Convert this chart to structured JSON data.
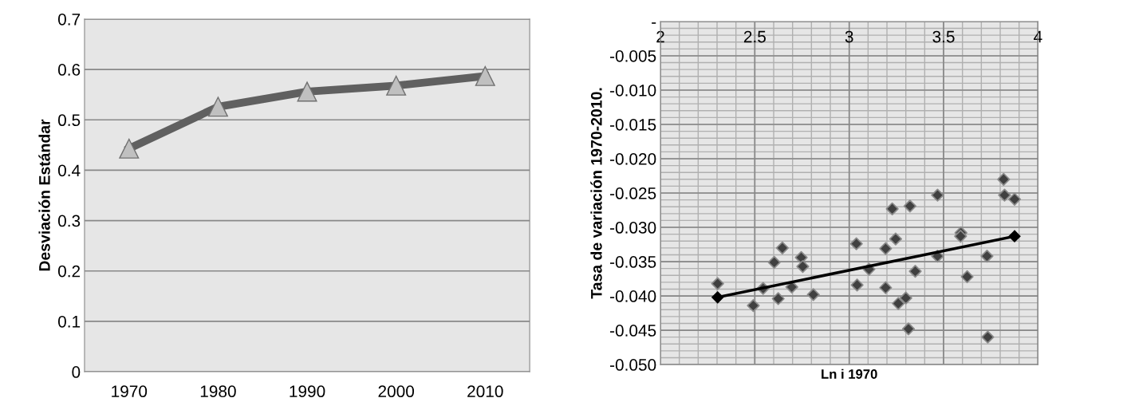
{
  "chart_data": [
    {
      "type": "line",
      "categories": [
        "1970",
        "1980",
        "1990",
        "2000",
        "2010"
      ],
      "ylabel": "Desviación Estándar",
      "ylim": [
        0,
        0.7
      ],
      "yticks": [
        0,
        0.1,
        0.2,
        0.3,
        0.4,
        0.5,
        0.6,
        0.7
      ],
      "grid": "y",
      "marker": "triangle",
      "series": [
        {
          "color": "#606060",
          "values": [
            0.443,
            0.526,
            0.556,
            0.568,
            0.587
          ]
        }
      ]
    },
    {
      "type": "scatter",
      "xlabel": "Ln i 1970",
      "ylabel": "Tasa de variación 1970-2010.",
      "xlim": [
        2,
        4
      ],
      "xticks": [
        2,
        2.5,
        3,
        3.5,
        4
      ],
      "ylim": [
        -0.05,
        0
      ],
      "yticks": [
        {
          "value": 0,
          "label": "-"
        },
        {
          "value": -0.005,
          "label": "-0.005"
        },
        {
          "value": -0.01,
          "label": "-0.010"
        },
        {
          "value": -0.015,
          "label": "-0.015"
        },
        {
          "value": -0.02,
          "label": "-0.020"
        },
        {
          "value": -0.025,
          "label": "-0.025"
        },
        {
          "value": -0.03,
          "label": "-0.030"
        },
        {
          "value": -0.035,
          "label": "-0.035"
        },
        {
          "value": -0.04,
          "label": "-0.040"
        },
        {
          "value": -0.045,
          "label": "-0.045"
        },
        {
          "value": -0.05,
          "label": "-0.050"
        }
      ],
      "grid": true,
      "marker": "diamond",
      "x": [
        2.303,
        2.492,
        2.544,
        2.603,
        2.646,
        2.624,
        2.696,
        2.746,
        2.754,
        2.81,
        3.038,
        3.042,
        3.105,
        3.193,
        3.193,
        3.228,
        3.246,
        3.26,
        3.3,
        3.314,
        3.322,
        3.35,
        3.468,
        3.468,
        3.592,
        3.59,
        3.625,
        3.73,
        3.734,
        3.818,
        3.823,
        3.876
      ],
      "series": [
        {
          "color": "#404040",
          "values": [
            -0.0382,
            -0.0414,
            -0.0389,
            -0.0351,
            -0.033,
            -0.0404,
            -0.0387,
            -0.0344,
            -0.0357,
            -0.0398,
            -0.0324,
            -0.0384,
            -0.0361,
            -0.0331,
            -0.0388,
            -0.0273,
            -0.0317,
            -0.0411,
            -0.0403,
            -0.0448,
            -0.0269,
            -0.0364,
            -0.0253,
            -0.0342,
            -0.0308,
            -0.0313,
            -0.0372,
            -0.0342,
            -0.046,
            -0.023,
            -0.0253,
            -0.0259
          ]
        },
        {
          "type": "line",
          "color": "#000000",
          "x": [
            2.303,
            3.876
          ],
          "values": [
            -0.0402,
            -0.0313
          ]
        }
      ]
    }
  ]
}
